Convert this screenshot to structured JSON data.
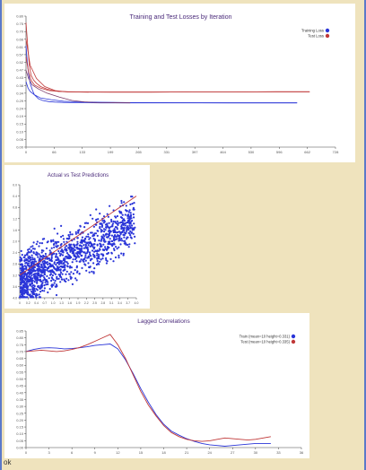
{
  "chart_data": [
    {
      "type": "line",
      "title": "Training and Test Losses by Iteration",
      "xlim": [
        0,
        742
      ],
      "ylim": [
        0.0,
        0.8
      ],
      "x_ticks": [
        "0",
        "66",
        "133",
        "199",
        "265",
        "331",
        "397",
        "464",
        "530",
        "596",
        "662",
        "728"
      ],
      "y_ticks": [
        "0.80",
        "0.75",
        "0.70",
        "0.66",
        "0.61",
        "0.57",
        "0.52",
        "0.47",
        "0.43",
        "0.38",
        "0.34",
        "0.29",
        "0.24",
        "0.19",
        "0.15",
        "0.10",
        "0.05",
        "0.00"
      ],
      "legend": "top-right",
      "series": [
        {
          "name": "Training Loss",
          "color": "#2a35d8",
          "x": [
            0,
            3,
            6,
            10,
            15,
            20,
            30,
            40,
            55,
            70,
            90,
            110,
            140,
            180,
            250,
            350,
            450,
            550,
            650
          ],
          "y": [
            0.62,
            0.52,
            0.45,
            0.39,
            0.35,
            0.32,
            0.295,
            0.285,
            0.278,
            0.275,
            0.273,
            0.272,
            0.271,
            0.27,
            0.27,
            0.27,
            0.27,
            0.27,
            0.27
          ]
        },
        {
          "name": "Training Loss",
          "color": "#2a35d8",
          "x": [
            0,
            5,
            10,
            20,
            35,
            60,
            90,
            130,
            180,
            250,
            350,
            500,
            650
          ],
          "y": [
            0.4,
            0.36,
            0.34,
            0.32,
            0.3,
            0.29,
            0.28,
            0.276,
            0.274,
            0.272,
            0.271,
            0.27,
            0.27
          ]
        },
        {
          "name": "Test Loss",
          "color": "#c03838",
          "x": [
            0,
            4,
            8,
            12,
            18,
            25,
            35,
            50,
            65,
            80,
            100,
            140,
            200,
            300,
            400,
            500,
            600,
            680
          ],
          "y": [
            0.76,
            0.62,
            0.5,
            0.44,
            0.41,
            0.39,
            0.37,
            0.355,
            0.345,
            0.34,
            0.338,
            0.337,
            0.336,
            0.336,
            0.337,
            0.337,
            0.338,
            0.338
          ]
        },
        {
          "name": "Test Loss",
          "color": "#c03838",
          "x": [
            0,
            6,
            12,
            20,
            35,
            55,
            80,
            110,
            150,
            200,
            300,
            400,
            500,
            600,
            680
          ],
          "y": [
            0.55,
            0.46,
            0.41,
            0.38,
            0.36,
            0.345,
            0.34,
            0.337,
            0.336,
            0.336,
            0.336,
            0.337,
            0.337,
            0.338,
            0.338
          ]
        },
        {
          "name": "Training Loss",
          "color": "#7a3a6a",
          "x": [
            0,
            6,
            15,
            30,
            50,
            80,
            110,
            140,
            170,
            200,
            250
          ],
          "y": [
            0.47,
            0.42,
            0.38,
            0.355,
            0.33,
            0.305,
            0.285,
            0.276,
            0.272,
            0.271,
            0.27
          ]
        },
        {
          "name": "Test Loss",
          "color": "#c03838",
          "x": [
            0,
            10,
            25,
            45,
            70,
            100,
            150
          ],
          "y": [
            0.66,
            0.5,
            0.42,
            0.37,
            0.345,
            0.337,
            0.336
          ]
        }
      ]
    },
    {
      "type": "scatter",
      "title": "Actual vs Test Predictions",
      "xlim": [
        0,
        4.0
      ],
      "ylim": [
        0,
        4.0
      ],
      "x_ticks": [
        "0",
        "0.2",
        "0.4",
        "0.7",
        "1.0",
        "1.3",
        "1.6",
        "1.9",
        "2.2",
        "2.5",
        "2.8",
        "3.1",
        "3.4",
        "3.7",
        "4.0"
      ],
      "y_ticks": [
        "0.0",
        "0.4",
        "0.8",
        "1.2",
        "1.6",
        "2.0",
        "2.4",
        "2.8",
        "3.2",
        "3.6",
        "4.0"
      ],
      "point_color": "#2a35d8",
      "fit_line": {
        "color": "#c03838",
        "x": [
          0,
          4.0
        ],
        "y": [
          0.8,
          3.6
        ]
      },
      "point_count": 1400
    },
    {
      "type": "line",
      "title": "Lagged Correlations",
      "xlim": [
        0,
        36
      ],
      "ylim": [
        0.0,
        0.85
      ],
      "x_ticks": [
        "0",
        "3",
        "6",
        "9",
        "12",
        "15",
        "18",
        "21",
        "24",
        "27",
        "30",
        "33",
        "36"
      ],
      "y_ticks": [
        "0.85",
        "0.80",
        "0.75",
        "0.70",
        "0.65",
        "0.60",
        "0.55",
        "0.50",
        "0.45",
        "0.40",
        "0.35",
        "0.30",
        "0.25",
        "0.20",
        "0.15",
        "0.10",
        "0.05",
        "0.00"
      ],
      "legend": "top-right",
      "series": [
        {
          "name": "Train (mean=10 height=0.331)",
          "color": "#2a35d8",
          "x": [
            0,
            1,
            2,
            3,
            4,
            5,
            6,
            7,
            8,
            9,
            10,
            11,
            12,
            13,
            14,
            15,
            16,
            17,
            18,
            19,
            20,
            21,
            22,
            23,
            24,
            25,
            26,
            27,
            28,
            29,
            30,
            31,
            32
          ],
          "y": [
            0.7,
            0.715,
            0.725,
            0.728,
            0.725,
            0.72,
            0.722,
            0.728,
            0.735,
            0.745,
            0.75,
            0.755,
            0.72,
            0.64,
            0.54,
            0.43,
            0.33,
            0.24,
            0.17,
            0.12,
            0.09,
            0.065,
            0.045,
            0.03,
            0.02,
            0.015,
            0.01,
            0.015,
            0.02,
            0.025,
            0.03,
            0.03,
            0.03
          ]
        },
        {
          "name": "Test (mean=10 height=0.335)",
          "color": "#c03838",
          "x": [
            0,
            1,
            2,
            3,
            4,
            5,
            6,
            7,
            8,
            9,
            10,
            11,
            12,
            13,
            14,
            15,
            16,
            17,
            18,
            19,
            20,
            21,
            22,
            23,
            24,
            25,
            26,
            27,
            28,
            29,
            30,
            31,
            32
          ],
          "y": [
            0.7,
            0.705,
            0.71,
            0.705,
            0.7,
            0.705,
            0.715,
            0.73,
            0.75,
            0.775,
            0.8,
            0.825,
            0.75,
            0.65,
            0.53,
            0.41,
            0.31,
            0.23,
            0.16,
            0.11,
            0.08,
            0.06,
            0.05,
            0.045,
            0.05,
            0.06,
            0.07,
            0.065,
            0.06,
            0.055,
            0.06,
            0.07,
            0.08
          ]
        }
      ]
    }
  ],
  "status": {
    "text": "ok"
  }
}
